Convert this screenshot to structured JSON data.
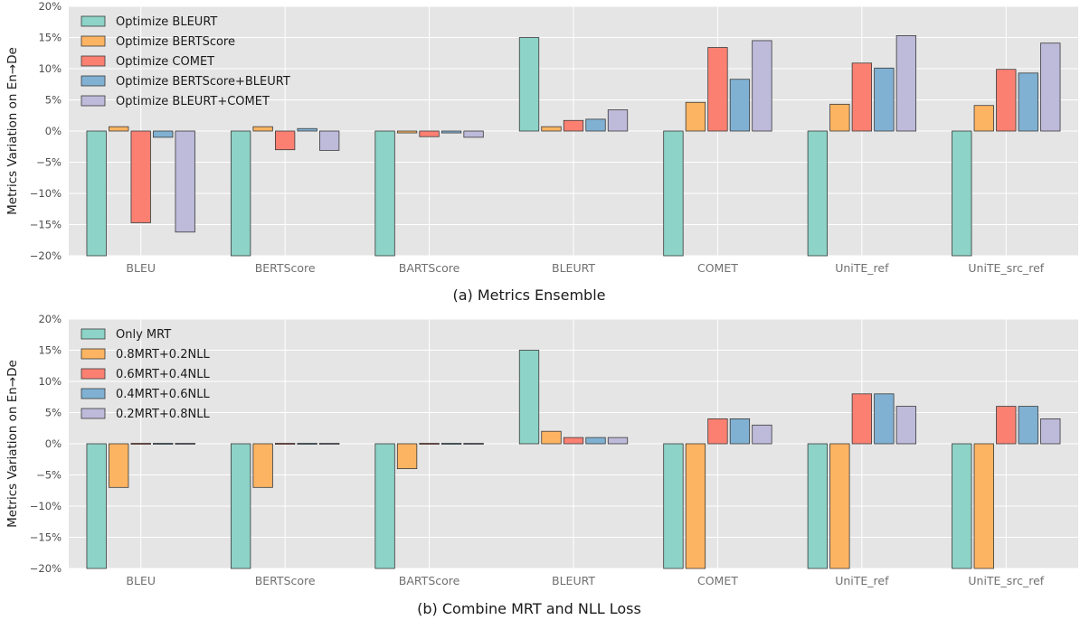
{
  "chart_data": [
    {
      "type": "bar",
      "title": "",
      "caption": "(a) Metrics Ensemble",
      "xlabel": "",
      "ylabel": "Metrics Variation on En→De",
      "ylim": [
        -20,
        20
      ],
      "yticks": [
        -20,
        -15,
        -10,
        -5,
        0,
        5,
        10,
        15,
        20
      ],
      "ytick_labels": [
        "−20%",
        "−15%",
        "−10%",
        "−5%",
        "0%",
        "5%",
        "10%",
        "15%",
        "20%"
      ],
      "grid": true,
      "legend_position": "top-left",
      "categories": [
        "BLEU",
        "BERTScore",
        "BARTScore",
        "BLEURT",
        "COMET",
        "UniTE_ref",
        "UniTE_src_ref"
      ],
      "series": [
        {
          "name": "Optimize BLEURT",
          "color": "#8dd3c7",
          "values": [
            -20,
            -20,
            -20,
            15,
            -20,
            -20,
            -20
          ]
        },
        {
          "name": "Optimize BERTScore",
          "color": "#fdb462",
          "values": [
            0.7,
            0.7,
            -0.3,
            0.7,
            4.6,
            4.3,
            4.1
          ]
        },
        {
          "name": "Optimize COMET",
          "color": "#fb8072",
          "values": [
            -14.7,
            -3.0,
            -0.9,
            1.7,
            13.4,
            10.9,
            9.9
          ]
        },
        {
          "name": "Optimize BERTScore+BLEURT",
          "color": "#80b1d3",
          "values": [
            -1.0,
            0.4,
            -0.3,
            1.9,
            8.3,
            10.1,
            9.3
          ]
        },
        {
          "name": "Optimize BLEURT+COMET",
          "color": "#bebada",
          "values": [
            -16.2,
            -3.1,
            -1.0,
            3.4,
            14.5,
            15.3,
            14.1
          ]
        }
      ]
    },
    {
      "type": "bar",
      "title": "",
      "caption": "(b) Combine MRT and NLL Loss",
      "xlabel": "",
      "ylabel": "Metrics Variation on En→De",
      "ylim": [
        -20,
        20
      ],
      "yticks": [
        -20,
        -15,
        -10,
        -5,
        0,
        5,
        10,
        15,
        20
      ],
      "ytick_labels": [
        "−20%",
        "−15%",
        "−10%",
        "−5%",
        "0%",
        "5%",
        "10%",
        "15%",
        "20%"
      ],
      "grid": true,
      "legend_position": "top-left",
      "categories": [
        "BLEU",
        "BERTScore",
        "BARTScore",
        "BLEURT",
        "COMET",
        "UniTE_ref",
        "UniTE_src_ref"
      ],
      "series": [
        {
          "name": "Only MRT",
          "color": "#8dd3c7",
          "values": [
            -20,
            -20,
            -20,
            15,
            -20,
            -20,
            -20
          ]
        },
        {
          "name": "0.8MRT+0.2NLL",
          "color": "#fdb462",
          "values": [
            -7,
            -7,
            -4,
            2,
            -20,
            -20,
            -20
          ]
        },
        {
          "name": "0.6MRT+0.4NLL",
          "color": "#fb8072",
          "values": [
            0,
            0,
            0,
            1,
            4,
            8,
            6
          ]
        },
        {
          "name": "0.4MRT+0.6NLL",
          "color": "#80b1d3",
          "values": [
            0,
            0,
            0,
            1,
            4,
            8,
            6
          ]
        },
        {
          "name": "0.2MRT+0.8NLL",
          "color": "#bebada",
          "values": [
            0,
            0,
            0,
            1,
            3,
            6,
            4
          ]
        }
      ]
    }
  ]
}
